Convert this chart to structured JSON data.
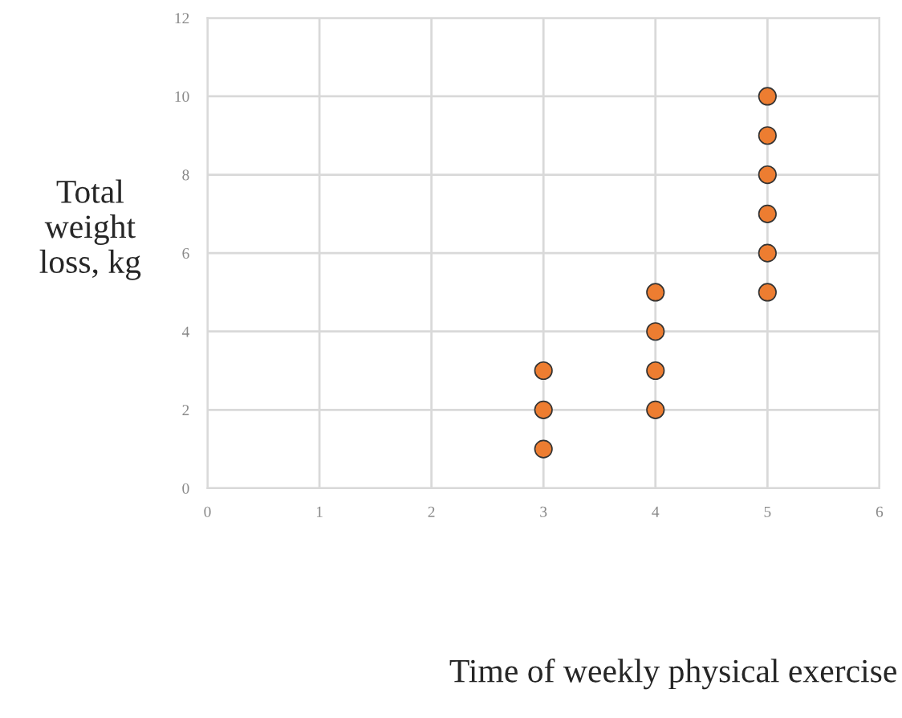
{
  "chart_data": {
    "type": "scatter",
    "xlabel": "Time of weekly physical exercise",
    "ylabel": "Total\nweight\nloss, kg",
    "x": [
      3,
      3,
      3,
      4,
      4,
      4,
      4,
      5,
      5,
      5,
      5,
      5,
      5
    ],
    "series": [
      {
        "color": "#ed7d31",
        "values": [
          1,
          2,
          3,
          2,
          3,
          4,
          5,
          5,
          6,
          7,
          8,
          9,
          10
        ]
      }
    ],
    "xlim": [
      0,
      6
    ],
    "xticks": [
      0,
      1,
      2,
      3,
      4,
      5,
      6
    ],
    "ylim": [
      0,
      12
    ],
    "yticks": [
      0,
      2,
      4,
      6,
      8,
      10,
      12
    ],
    "grid": true,
    "marker": "circle",
    "legend": false
  }
}
